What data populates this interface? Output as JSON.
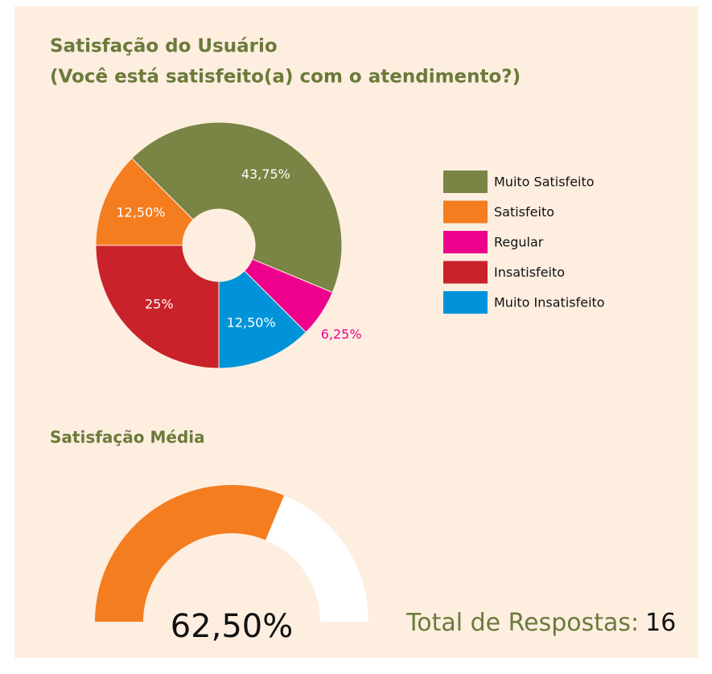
{
  "chart_data": [
    {
      "type": "pie",
      "title": "Satisfação do Usuário",
      "subtitle": "(Você está satisfeito(a) com o atendimento?)",
      "categories": [
        "Muito Satisfeito",
        "Satisfeito",
        "Regular",
        "Insatisfeito",
        "Muito Insatisfeito"
      ],
      "values": [
        43.75,
        12.5,
        6.25,
        25,
        12.5
      ],
      "value_labels": [
        "43,75%",
        "12,50%",
        "6,25%",
        "25%",
        "12,50%"
      ],
      "colors": [
        "#7a8444",
        "#f47d20",
        "#ec008c",
        "#c9222a",
        "#0093d9"
      ]
    },
    {
      "type": "gauge",
      "title": "Satisfação Média",
      "value": 62.5,
      "value_label": "62,50%",
      "ylim": [
        0,
        100
      ],
      "color": "#f47d20",
      "track_color": "#ffffff"
    }
  ],
  "total": {
    "label": "Total de Respostas:",
    "value": 16
  }
}
